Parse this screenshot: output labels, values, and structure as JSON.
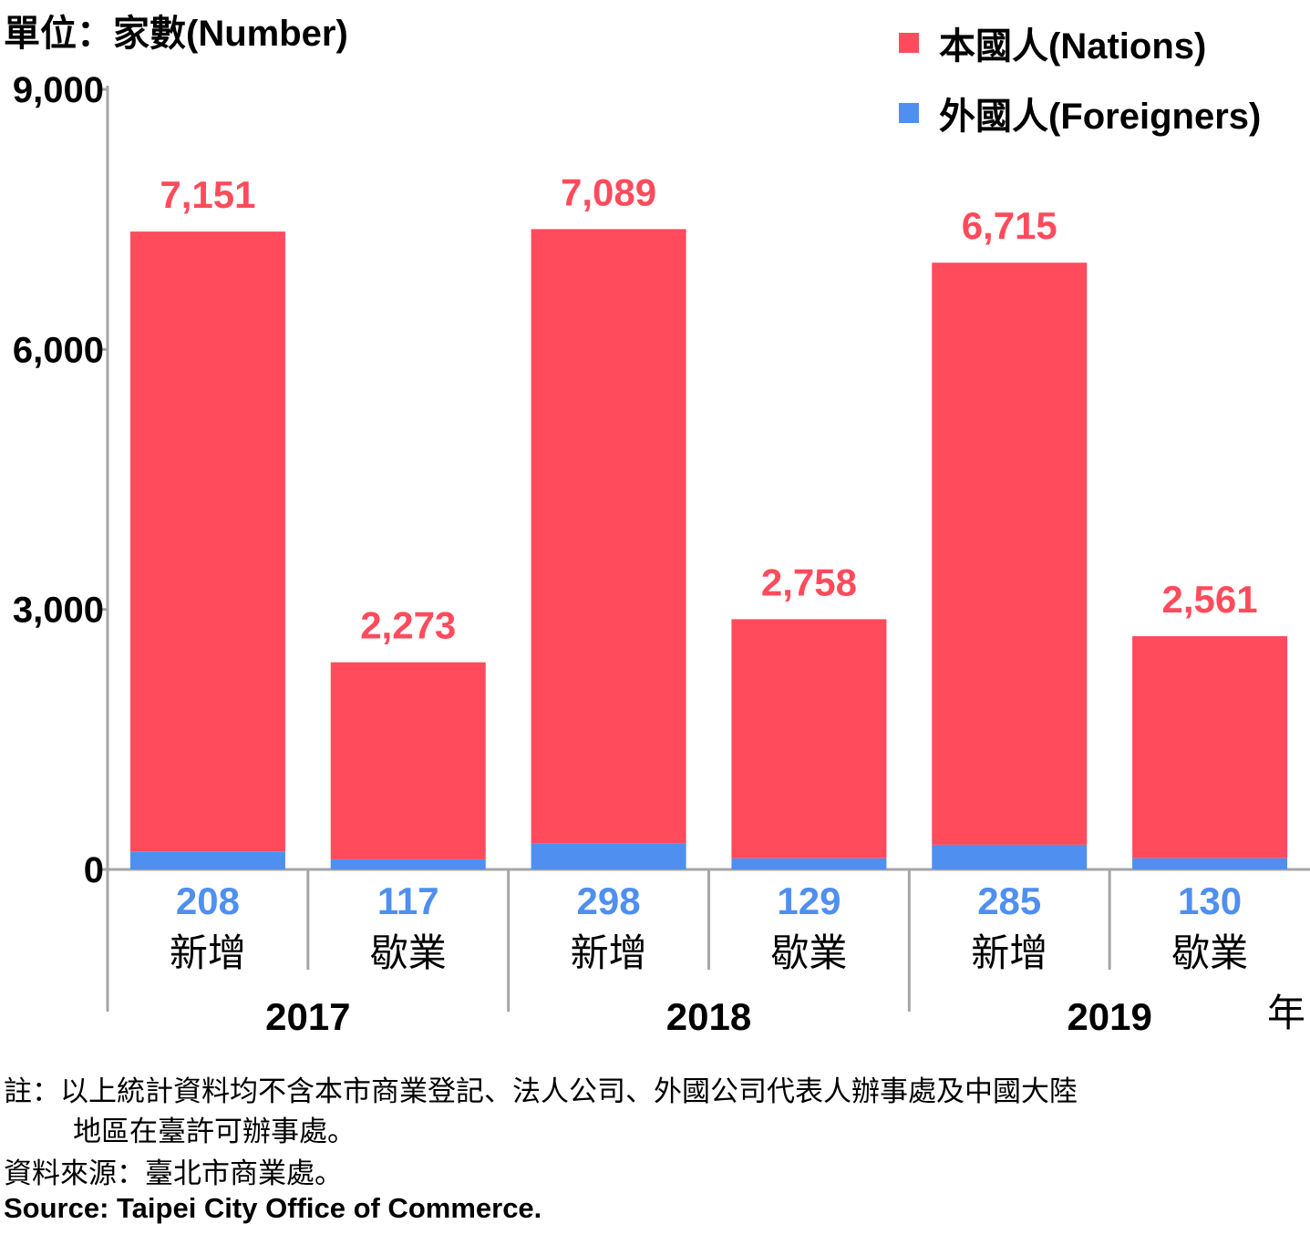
{
  "chart_data": {
    "type": "bar",
    "stacked": true,
    "unit_label": "單位：家數(Number)",
    "ylim": [
      0,
      9000
    ],
    "yticks": [
      "0",
      "3,000",
      "6,000",
      "9,000"
    ],
    "ytick_values": [
      0,
      3000,
      6000,
      9000
    ],
    "categories": [
      "新增",
      "歇業",
      "新增",
      "歇業",
      "新增",
      "歇業"
    ],
    "groups": [
      "2017",
      "2018",
      "2019"
    ],
    "x_unit": "年",
    "series": [
      {
        "name": "外國人(Foreigners)",
        "color": "#4f8ff0",
        "values": [
          208,
          117,
          298,
          129,
          285,
          130
        ],
        "labels": [
          "208",
          "117",
          "298",
          "129",
          "285",
          "130"
        ]
      },
      {
        "name": "本國人(Nations)",
        "color": "#ff4b5c",
        "values": [
          7151,
          2273,
          7089,
          2758,
          6715,
          2561
        ],
        "labels": [
          "7,151",
          "2,273",
          "7,089",
          "2,758",
          "6,715",
          "2,561"
        ]
      }
    ],
    "legend": [
      {
        "label": "本國人(Nations)",
        "color": "#ff4b5c"
      },
      {
        "label": "外國人(Foreigners)",
        "color": "#4f8ff0"
      }
    ],
    "legend_position": "top-right",
    "grid": false
  },
  "notes": {
    "note_line1": "註：以上統計資料均不含本市商業登記、法人公司、外國公司代表人辦事處及中國大陸",
    "note_line2": "地區在臺許可辦事處。",
    "source_zh": "資料來源：臺北市商業處。",
    "source_en": "Source: Taipei City Office of Commerce."
  }
}
